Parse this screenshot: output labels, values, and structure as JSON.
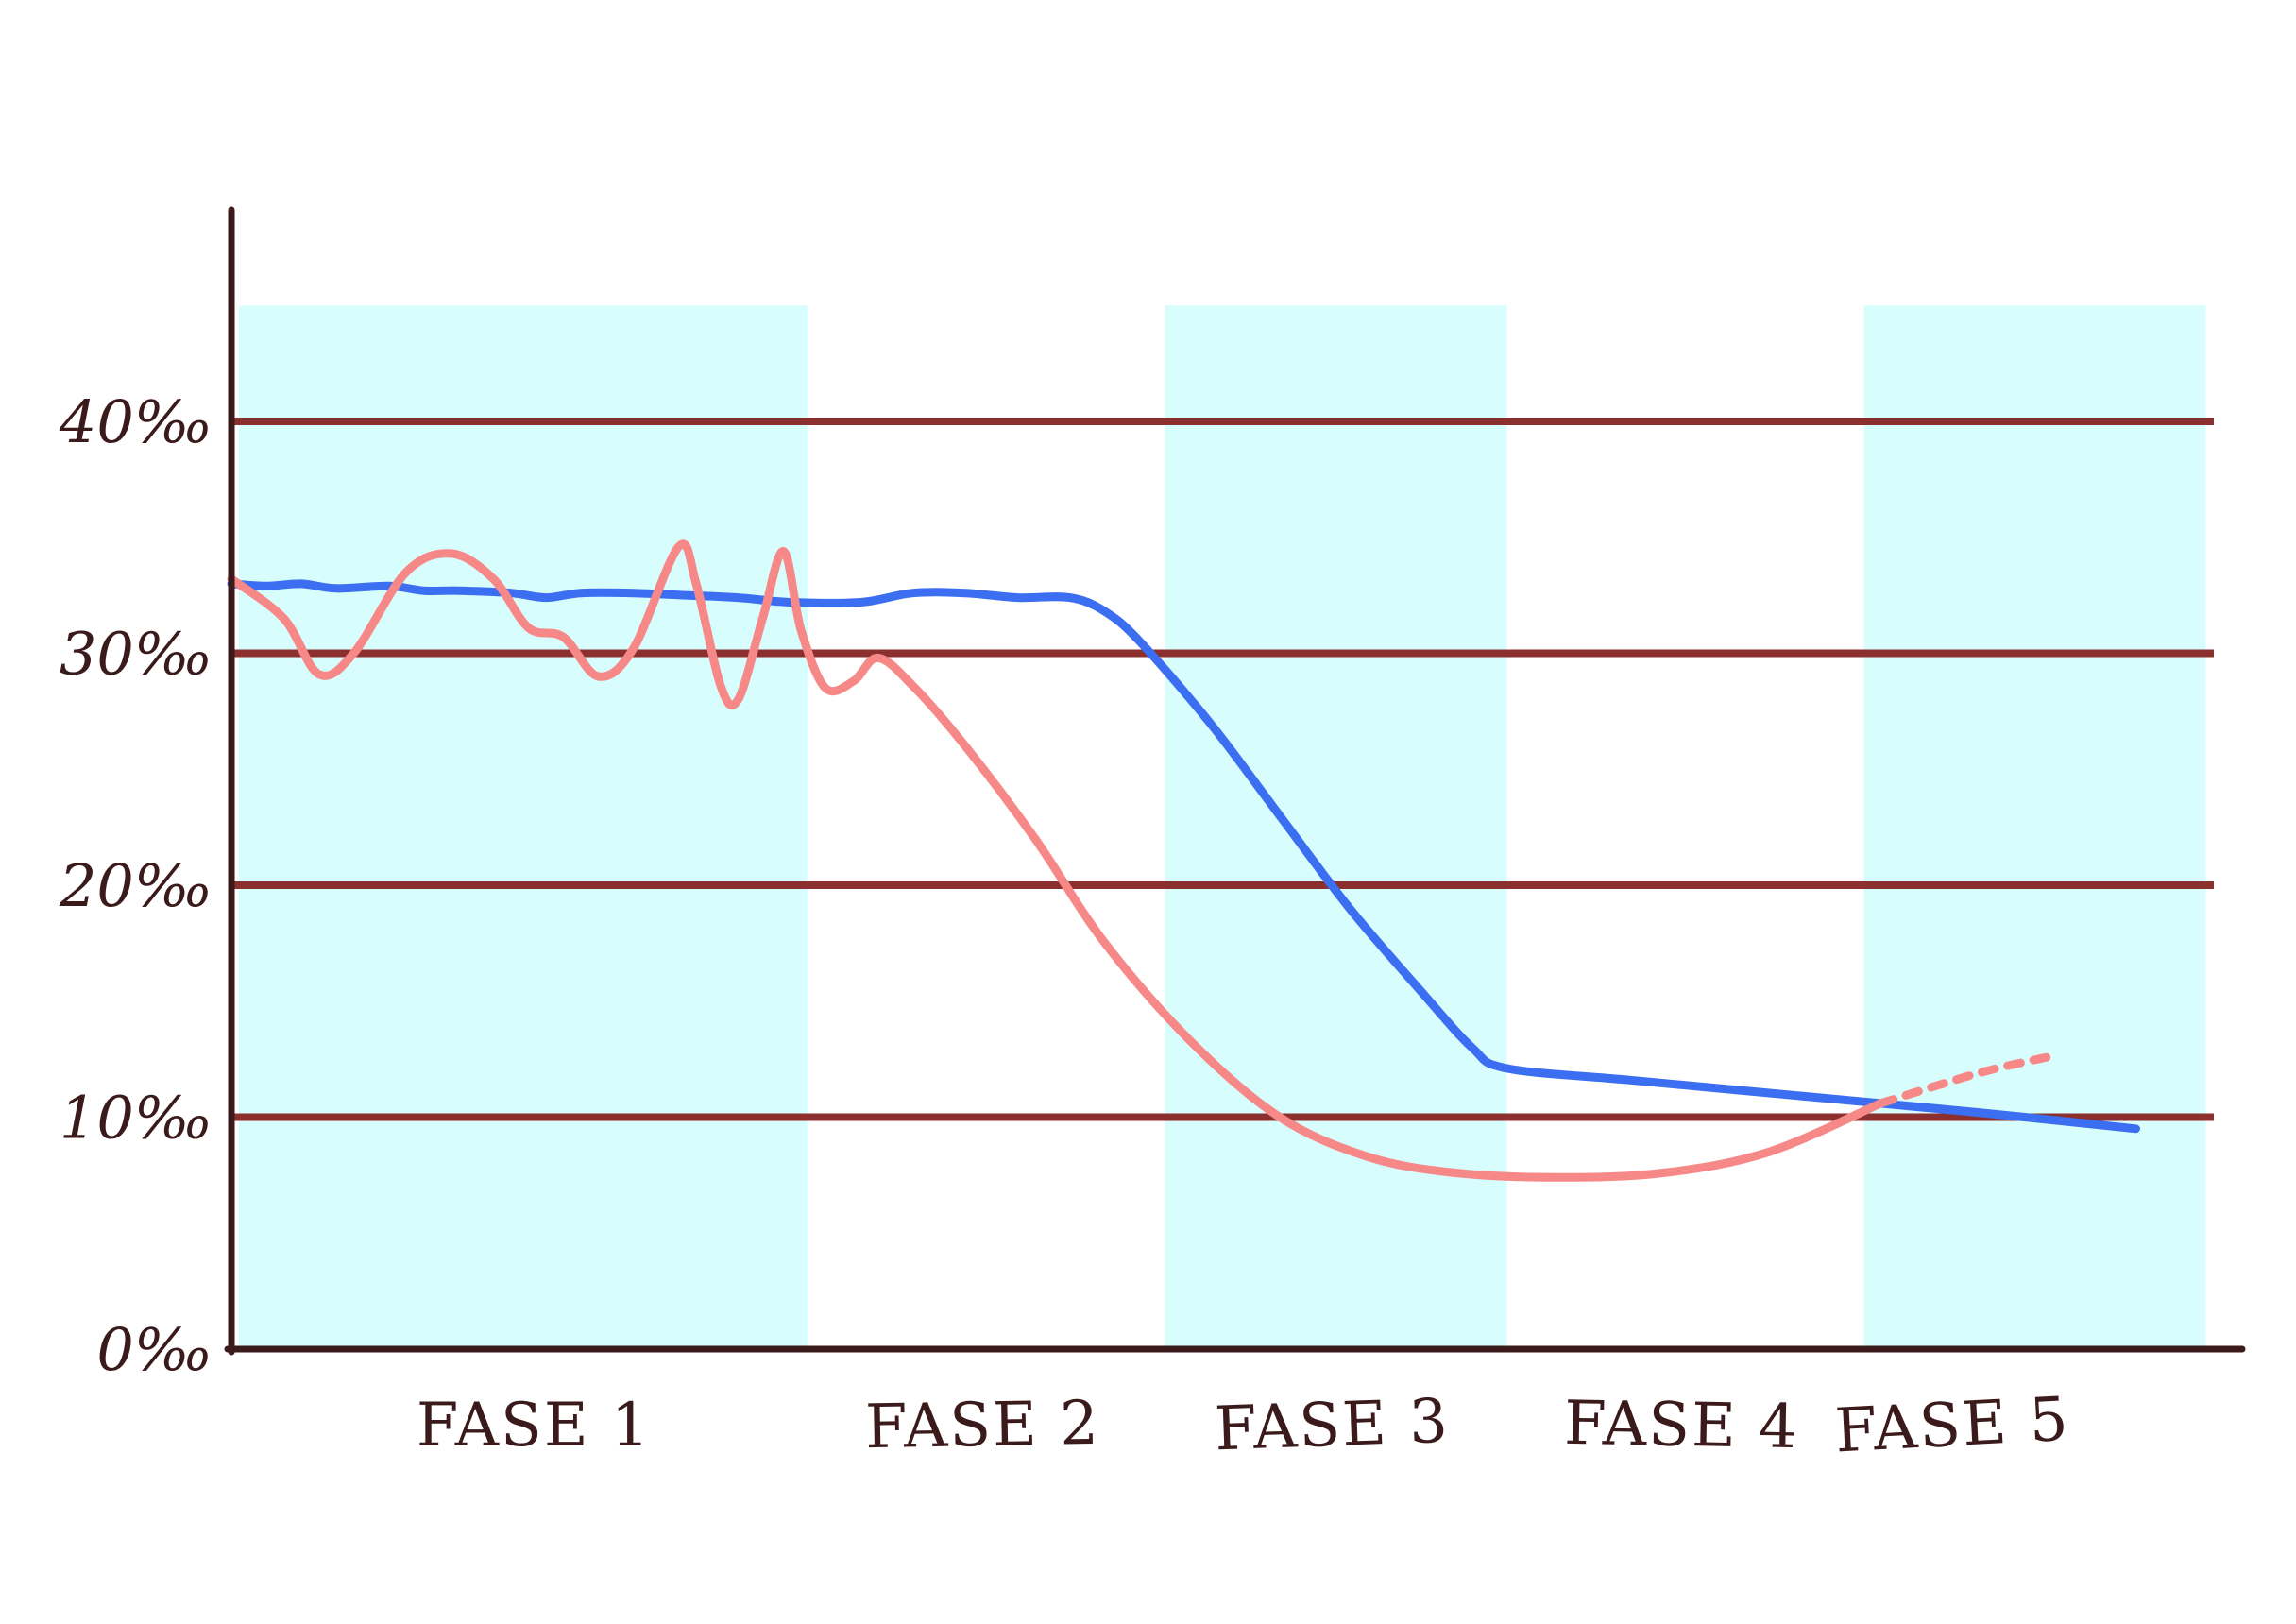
{
  "chart_data": {
    "type": "line",
    "title": "",
    "xlabel": "",
    "ylabel": "",
    "x_range": [
      0,
      5
    ],
    "ylim": [
      0,
      45
    ],
    "y_ticks": [
      {
        "value": 0,
        "label": "0‰"
      },
      {
        "value": 10,
        "label": "10‰"
      },
      {
        "value": 20,
        "label": "20‰"
      },
      {
        "value": 30,
        "label": "30‰"
      },
      {
        "value": 40,
        "label": "40‰"
      }
    ],
    "grid": true,
    "phases": [
      {
        "label": "FASE 1",
        "start": 0,
        "end": 1.65,
        "shaded": true
      },
      {
        "label": "FASE 2",
        "start": 1.65,
        "end": 2.65,
        "shaded": false
      },
      {
        "label": "FASE 3",
        "start": 2.65,
        "end": 3.65,
        "shaded": true
      },
      {
        "label": "FASE 4",
        "start": 3.65,
        "end": 4.65,
        "shaded": false
      },
      {
        "label": "FASE 5",
        "start": 4.65,
        "end": 5.65,
        "shaded": true
      }
    ],
    "series": [
      {
        "color": "#3b6ef0",
        "points": [
          [
            0.0,
            33.0
          ],
          [
            0.1,
            32.9
          ],
          [
            0.2,
            33.0
          ],
          [
            0.3,
            32.8
          ],
          [
            0.45,
            32.9
          ],
          [
            0.55,
            32.7
          ],
          [
            0.65,
            32.7
          ],
          [
            0.8,
            32.6
          ],
          [
            0.9,
            32.4
          ],
          [
            1.0,
            32.6
          ],
          [
            1.15,
            32.6
          ],
          [
            1.3,
            32.5
          ],
          [
            1.45,
            32.4
          ],
          [
            1.6,
            32.2
          ],
          [
            1.8,
            32.2
          ],
          [
            1.95,
            32.6
          ],
          [
            2.1,
            32.6
          ],
          [
            2.25,
            32.4
          ],
          [
            2.4,
            32.4
          ],
          [
            2.5,
            31.8
          ],
          [
            2.6,
            30.5
          ],
          [
            2.8,
            27.0
          ],
          [
            3.0,
            23.0
          ],
          [
            3.2,
            19.0
          ],
          [
            3.4,
            15.5
          ],
          [
            3.55,
            13.0
          ],
          [
            3.65,
            12.1
          ],
          [
            4.0,
            11.6
          ],
          [
            4.5,
            10.9
          ],
          [
            5.0,
            10.2
          ],
          [
            5.45,
            9.5
          ]
        ]
      },
      {
        "color": "#f78888",
        "dashed_from_x": 4.72,
        "points": [
          [
            0.0,
            33.2
          ],
          [
            0.15,
            31.5
          ],
          [
            0.25,
            29.1
          ],
          [
            0.35,
            30.0
          ],
          [
            0.5,
            33.5
          ],
          [
            0.63,
            34.3
          ],
          [
            0.75,
            33.2
          ],
          [
            0.85,
            31.1
          ],
          [
            0.95,
            30.7
          ],
          [
            1.05,
            29.0
          ],
          [
            1.15,
            30.2
          ],
          [
            1.28,
            34.6
          ],
          [
            1.33,
            33.0
          ],
          [
            1.4,
            28.6
          ],
          [
            1.45,
            28.0
          ],
          [
            1.52,
            31.5
          ],
          [
            1.58,
            34.4
          ],
          [
            1.63,
            31.0
          ],
          [
            1.7,
            28.5
          ],
          [
            1.78,
            28.8
          ],
          [
            1.85,
            29.8
          ],
          [
            1.95,
            28.6
          ],
          [
            2.1,
            26.0
          ],
          [
            2.3,
            22.0
          ],
          [
            2.5,
            17.5
          ],
          [
            2.75,
            13.2
          ],
          [
            3.0,
            10.0
          ],
          [
            3.25,
            8.3
          ],
          [
            3.5,
            7.6
          ],
          [
            3.8,
            7.4
          ],
          [
            4.1,
            7.6
          ],
          [
            4.4,
            8.5
          ],
          [
            4.72,
            10.6
          ],
          [
            5.0,
            11.9
          ],
          [
            5.2,
            12.6
          ]
        ]
      }
    ]
  }
}
